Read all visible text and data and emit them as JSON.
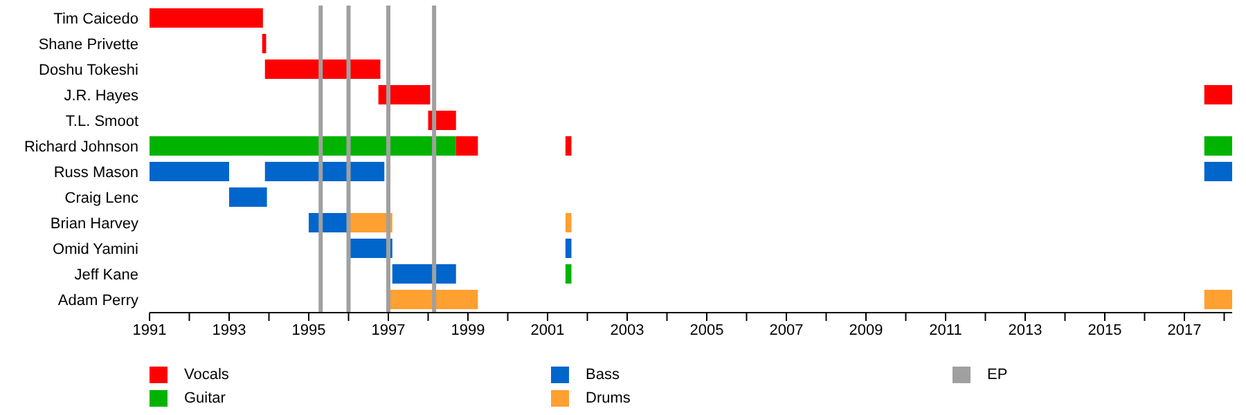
{
  "chart_data": {
    "type": "bar",
    "orientation": "horizontal",
    "categories": [
      "Tim Caicedo",
      "Shane Privette",
      "Doshu Tokeshi",
      "J.R. Hayes",
      "T.L. Smoot",
      "Richard Johnson",
      "Russ Mason",
      "Craig Lenc",
      "Brian Harvey",
      "Omid Yamini",
      "Jeff Kane",
      "Adam Perry"
    ],
    "series": [
      {
        "name": "Vocals",
        "color": "#ff0000",
        "base": [
          1991,
          1993.83,
          1993.9,
          1996.75,
          1998.0,
          2001.45,
          null,
          null,
          null,
          null,
          null,
          null
        ],
        "values": [
          2.85,
          0.1,
          2.9,
          1.3,
          0.7,
          0.15,
          null,
          null,
          null,
          null,
          null,
          null
        ]
      },
      {
        "name": "Guitar",
        "color": "#00b300",
        "base": [
          null,
          null,
          null,
          null,
          null,
          1991,
          null,
          null,
          null,
          null,
          2001.45,
          null
        ],
        "values": [
          null,
          null,
          null,
          null,
          null,
          7.7,
          null,
          null,
          null,
          null,
          0.15,
          null
        ]
      },
      {
        "name": "Bass",
        "color": "#0066cc",
        "base": [
          null,
          null,
          null,
          null,
          null,
          null,
          1991,
          1993.0,
          1995.0,
          1996.0,
          1997.1,
          null
        ],
        "values": [
          null,
          null,
          null,
          null,
          null,
          null,
          2.0,
          0.95,
          1.0,
          1.1,
          1.6,
          null
        ]
      },
      {
        "name": "Drums",
        "color": "#ffa031",
        "base": [
          null,
          null,
          null,
          null,
          null,
          null,
          null,
          null,
          1996.0,
          null,
          null,
          1997.05
        ],
        "values": [
          null,
          null,
          null,
          null,
          null,
          null,
          null,
          null,
          1.1,
          null,
          null,
          2.2
        ]
      },
      {
        "color": "#ff0000",
        "base": [
          null,
          null,
          null,
          2017.5,
          null,
          1998.7,
          null,
          null,
          null,
          null,
          null,
          null
        ],
        "values": [
          null,
          null,
          null,
          0.7,
          null,
          0.55,
          null,
          null,
          null,
          null,
          null,
          null
        ]
      },
      {
        "color": "#00b300",
        "base": [
          null,
          null,
          null,
          null,
          null,
          2017.5,
          null,
          null,
          null,
          null,
          null,
          null
        ],
        "values": [
          null,
          null,
          null,
          null,
          null,
          0.7,
          null,
          null,
          null,
          null,
          null,
          null
        ]
      },
      {
        "color": "#0066cc",
        "base": [
          null,
          null,
          null,
          null,
          null,
          null,
          1993.9,
          null,
          null,
          2001.45,
          null,
          null
        ],
        "values": [
          null,
          null,
          null,
          null,
          null,
          null,
          3.0,
          null,
          null,
          0.15,
          null,
          null
        ]
      },
      {
        "color": "#0066cc",
        "base": [
          null,
          null,
          null,
          null,
          null,
          null,
          2017.5,
          null,
          null,
          null,
          null,
          null
        ],
        "values": [
          null,
          null,
          null,
          null,
          null,
          null,
          0.7,
          null,
          null,
          null,
          null,
          null
        ]
      },
      {
        "color": "#ffa031",
        "base": [
          null,
          null,
          null,
          null,
          null,
          null,
          null,
          null,
          2001.45,
          null,
          null,
          2017.5
        ],
        "values": [
          null,
          null,
          null,
          null,
          null,
          null,
          null,
          null,
          0.15,
          null,
          null,
          0.7
        ]
      }
    ],
    "ref_lines": [
      {
        "axis": "x",
        "value": 1995.3,
        "label": "EP",
        "color": "#a0a0a0"
      },
      {
        "axis": "x",
        "value": 1996.0,
        "color": "#a0a0a0"
      },
      {
        "axis": "x",
        "value": 1997.0,
        "color": "#a0a0a0"
      },
      {
        "axis": "x",
        "value": 1998.15,
        "color": "#a0a0a0"
      }
    ],
    "xlim": [
      1991,
      2018.2
    ],
    "xticks": [
      1991,
      {
        "value": 1992,
        "label": null
      },
      1993,
      {
        "value": 1994,
        "label": null
      },
      1995,
      {
        "value": 1996,
        "label": null
      },
      1997,
      {
        "value": 1998,
        "label": null
      },
      1999,
      {
        "value": 2000,
        "label": null
      },
      2001,
      {
        "value": 2002,
        "label": null
      },
      2003,
      {
        "value": 2004,
        "label": null
      },
      2005,
      {
        "value": 2006,
        "label": null
      },
      2007,
      {
        "value": 2008,
        "label": null
      },
      2009,
      {
        "value": 2010,
        "label": null
      },
      2011,
      {
        "value": 2012,
        "label": null
      },
      2013,
      {
        "value": 2014,
        "label": null
      },
      2015,
      {
        "value": 2016,
        "label": null
      },
      2017,
      {
        "value": 2018,
        "label": null
      }
    ],
    "legend": "bottom",
    "grid": false
  }
}
